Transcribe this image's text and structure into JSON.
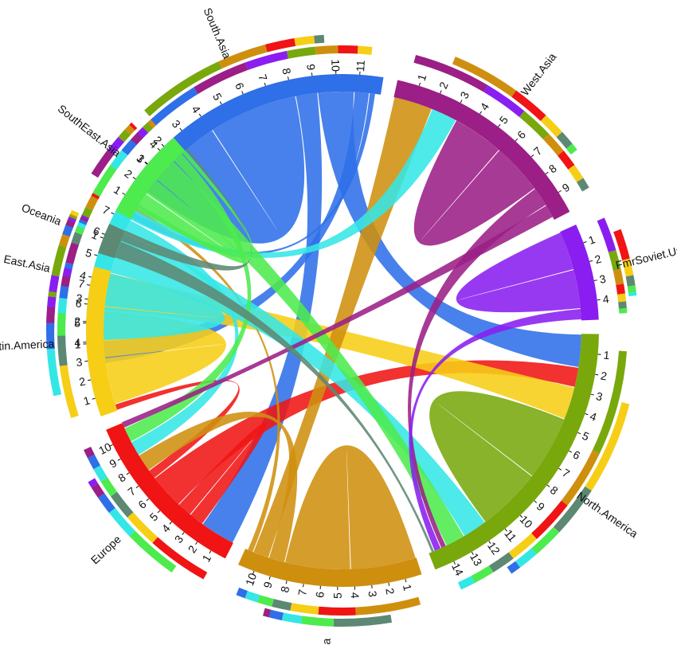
{
  "chart_data": {
    "type": "chord",
    "regions": [
      {
        "name": "East.Asia",
        "ticks": [
          "1",
          "2",
          "3",
          "4",
          "5",
          "6",
          "7"
        ],
        "color": "#35E6E6"
      },
      {
        "name": "South.Asia",
        "ticks": [
          "1",
          "2",
          "3",
          "4",
          "5",
          "6",
          "7",
          "8",
          "9",
          "10",
          "11"
        ],
        "color": "#2F6FE8"
      },
      {
        "name": "West.Asia",
        "ticks": [
          "1",
          "2",
          "3",
          "4",
          "5",
          "6",
          "7",
          "8",
          "9"
        ],
        "color": "#9B1F86"
      },
      {
        "name": "FmrSoviet.Union",
        "ticks": [
          "1",
          "2",
          "3",
          "4"
        ],
        "color": "#8A1EF0"
      },
      {
        "name": "North.America",
        "ticks": [
          "1",
          "2",
          "3",
          "4",
          "5",
          "6",
          "7",
          "8",
          "9",
          "10",
          "11",
          "12",
          "13",
          "14"
        ],
        "color": "#78A80C"
      },
      {
        "name": "Africa",
        "ticks": [
          "1",
          "2",
          "3",
          "4",
          "5",
          "6",
          "7",
          "8",
          "9",
          "10"
        ],
        "color": "#CF8F0E"
      },
      {
        "name": "Europe",
        "ticks": [
          "1",
          "2",
          "3",
          "4",
          "5",
          "6",
          "7",
          "8",
          "9",
          "10"
        ],
        "color": "#F01414"
      },
      {
        "name": "Latin.America",
        "ticks": [
          "1",
          "2",
          "3",
          "4",
          "5",
          "6",
          "7"
        ],
        "color": "#F7CE16"
      },
      {
        "name": "Oceania",
        "ticks": [
          "1"
        ],
        "color": "#5D8873"
      },
      {
        "name": "SouthEast.Asia",
        "ticks": [
          "1",
          "2",
          "3",
          "4"
        ],
        "color": "#4DEB4D"
      }
    ],
    "flows": [
      {
        "from": "South.Asia",
        "to": "South.Asia",
        "value": 5
      },
      {
        "from": "South.Asia",
        "to": "Europe",
        "value": 1.2
      },
      {
        "from": "South.Asia",
        "to": "North.America",
        "value": 2
      },
      {
        "from": "South.Asia",
        "to": "East.Asia",
        "value": 0.8
      },
      {
        "from": "South.Asia",
        "to": "SouthEast.Asia",
        "value": 0.3
      },
      {
        "from": "Europe",
        "to": "Europe",
        "value": 0.5
      },
      {
        "from": "Europe",
        "to": "North.America",
        "value": 1.2
      },
      {
        "from": "Europe",
        "to": "Latin.America",
        "value": 0.3
      },
      {
        "from": "Latin.America",
        "to": "Latin.America",
        "value": 2.5
      },
      {
        "from": "Latin.America",
        "to": "North.America",
        "value": 2
      },
      {
        "from": "Africa",
        "to": "Africa",
        "value": 2.5
      },
      {
        "from": "Africa",
        "to": "Europe",
        "value": 0.6
      },
      {
        "from": "Africa",
        "to": "West.Asia",
        "value": 0.6
      },
      {
        "from": "Africa",
        "to": "SouthEast.Asia",
        "value": 0.2
      },
      {
        "from": "North.America",
        "to": "North.America",
        "value": 4
      },
      {
        "from": "East.Asia",
        "to": "East.Asia",
        "value": 1.2
      },
      {
        "from": "East.Asia",
        "to": "North.America",
        "value": 1.5
      },
      {
        "from": "East.Asia",
        "to": "Europe",
        "value": 0.5
      },
      {
        "from": "East.Asia",
        "to": "West.Asia",
        "value": 0.4
      },
      {
        "from": "SouthEast.Asia",
        "to": "SouthEast.Asia",
        "value": 0.8
      },
      {
        "from": "SouthEast.Asia",
        "to": "North.America",
        "value": 1.2
      },
      {
        "from": "SouthEast.Asia",
        "to": "Europe",
        "value": 0.5
      },
      {
        "from": "SouthEast.Asia",
        "to": "East.Asia",
        "value": 0.2
      },
      {
        "from": "West.Asia",
        "to": "West.Asia",
        "value": 0.8
      },
      {
        "from": "West.Asia",
        "to": "North.America",
        "value": 0.3
      },
      {
        "from": "West.Asia",
        "to": "Europe",
        "value": 0.2
      },
      {
        "from": "FmrSoviet.Union",
        "to": "FmrSoviet.Union",
        "value": 1.5
      },
      {
        "from": "FmrSoviet.Union",
        "to": "North.America",
        "value": 0.4
      },
      {
        "from": "Oceania",
        "to": "North.America",
        "value": 0.15
      },
      {
        "from": "Oceania",
        "to": "SouthEast.Asia",
        "value": 0.1
      }
    ]
  }
}
